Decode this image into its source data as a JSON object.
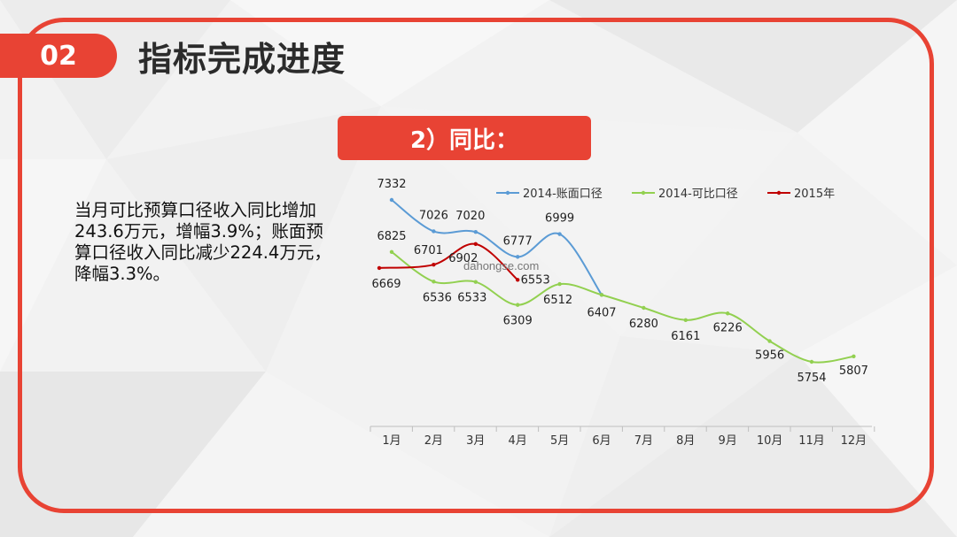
{
  "header": {
    "section_number": "02",
    "title": "指标完成进度"
  },
  "subtitle": "2）同比：",
  "summary_text": "当月可比预算口径收入同比增加243.6万元，增幅3.9%；账面预算口径收入同比减少224.4万元，降幅3.3%。",
  "watermark": "dahongse.com",
  "colors": {
    "accent": "#e84334",
    "series_blue": "#5b9bd5",
    "series_green": "#92d050",
    "series_red": "#c00000"
  },
  "chart_data": {
    "type": "line",
    "categories": [
      "1月",
      "2月",
      "3月",
      "4月",
      "5月",
      "6月",
      "7月",
      "8月",
      "9月",
      "10月",
      "11月",
      "12月"
    ],
    "series": [
      {
        "name": "2014-账面口径",
        "values": [
          7332,
          7026,
          7020,
          6777,
          6999,
          6407,
          null,
          null,
          null,
          null,
          null,
          null
        ]
      },
      {
        "name": "2014-可比口径",
        "values": [
          6825,
          6536,
          6533,
          6309,
          6512,
          6407,
          6280,
          6161,
          6226,
          5956,
          5754,
          5807
        ]
      },
      {
        "name": "2015年",
        "values": [
          6669,
          6701,
          6902,
          6553,
          null,
          null,
          null,
          null,
          null,
          null,
          null,
          null
        ]
      }
    ],
    "legend_position": "top",
    "grid": false,
    "ylim": [
      5000,
      7500
    ]
  }
}
